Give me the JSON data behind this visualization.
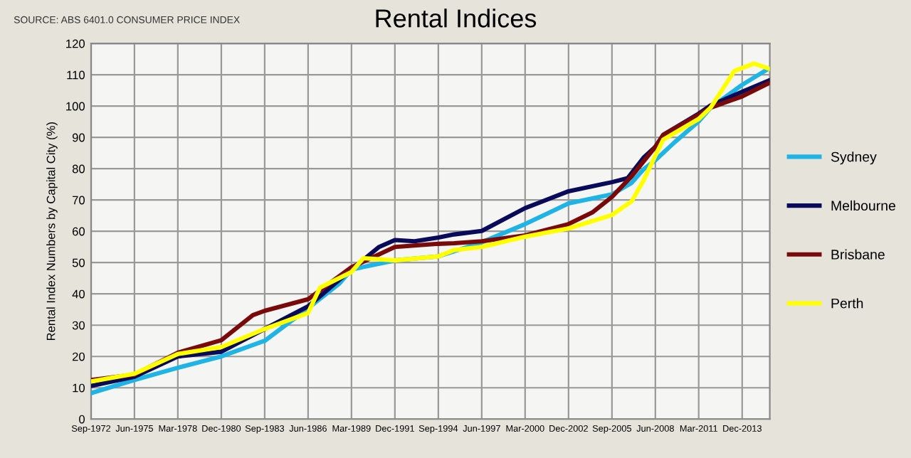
{
  "chart_data": {
    "type": "line",
    "title": "Rental Indices",
    "ylabel": "Rental Index Numbers by Capital City (%)",
    "annotations": [
      "SOURCE: ABS 6401.0 CONSUMER PRICE INDEX"
    ],
    "xlim": [
      "1972-09",
      "2015-09"
    ],
    "ylim": [
      0,
      120
    ],
    "yticks": [
      0,
      10,
      20,
      30,
      40,
      50,
      60,
      70,
      80,
      90,
      100,
      110,
      120
    ],
    "xticks": [
      {
        "value": "1972-09",
        "label": "Sep-1972"
      },
      {
        "value": "1975-06",
        "label": "Jun-1975"
      },
      {
        "value": "1978-03",
        "label": "Mar-1978"
      },
      {
        "value": "1980-12",
        "label": "Dec-1980"
      },
      {
        "value": "1983-09",
        "label": "Sep-1983"
      },
      {
        "value": "1986-06",
        "label": "Jun-1986"
      },
      {
        "value": "1989-03",
        "label": "Mar-1989"
      },
      {
        "value": "1991-12",
        "label": "Dec-1991"
      },
      {
        "value": "1994-09",
        "label": "Sep-1994"
      },
      {
        "value": "1997-06",
        "label": "Jun-1997"
      },
      {
        "value": "2000-03",
        "label": "Mar-2000"
      },
      {
        "value": "2002-12",
        "label": "Dec-2002"
      },
      {
        "value": "2005-09",
        "label": "Sep-2005"
      },
      {
        "value": "2008-06",
        "label": "Jun-2008"
      },
      {
        "value": "2011-03",
        "label": "Mar-2011"
      },
      {
        "value": "2013-12",
        "label": "Dec-2013"
      }
    ],
    "grid": true,
    "legend": "right",
    "marker": "none",
    "line_style": "solid",
    "series": [
      {
        "name": "Sydney",
        "color": "#1fb4e6",
        "x": [
          "1972-09",
          "1975-06",
          "1978-03",
          "1980-12",
          "1983-09",
          "1986-06",
          "1988-06",
          "1989-03",
          "1991-12",
          "1994-09",
          "1995-09",
          "1997-06",
          "2000-03",
          "2002-12",
          "2005-09",
          "2006-12",
          "2007-09",
          "2008-06",
          "2009-09",
          "2011-03",
          "2011-12",
          "2013-12",
          "2015-09"
        ],
        "values": [
          8.3,
          12.5,
          16.4,
          20,
          25,
          35.4,
          43.4,
          47.8,
          50.7,
          52,
          53.6,
          56.5,
          62.3,
          68.9,
          71.8,
          75.5,
          79.8,
          82.7,
          88.6,
          95.1,
          99.5,
          106.8,
          112.2
        ]
      },
      {
        "name": "Melbourne",
        "color": "#0a0a5a",
        "x": [
          "1972-09",
          "1975-06",
          "1978-03",
          "1980-12",
          "1983-09",
          "1986-06",
          "1989-03",
          "1990-12",
          "1991-12",
          "1993-03",
          "1994-09",
          "1995-09",
          "1997-06",
          "2000-03",
          "2002-12",
          "2005-09",
          "2006-09",
          "2007-09",
          "2008-06",
          "2008-12",
          "2011-03",
          "2011-12",
          "2013-12",
          "2015-09"
        ],
        "values": [
          10.6,
          13.5,
          20,
          21.5,
          28.8,
          36,
          47.8,
          55,
          57.2,
          56.8,
          58,
          59,
          60.1,
          67.4,
          72.8,
          75.7,
          77,
          83.5,
          87,
          90.8,
          97.6,
          100.2,
          104.6,
          108.3
        ]
      },
      {
        "name": "Brisbane",
        "color": "#7a0a0a",
        "x": [
          "1972-09",
          "1975-06",
          "1978-03",
          "1980-12",
          "1982-12",
          "1983-09",
          "1986-06",
          "1989-03",
          "1991-12",
          "1994-09",
          "1995-09",
          "1997-06",
          "2000-03",
          "2002-12",
          "2004-06",
          "2005-09",
          "2006-12",
          "2008-06",
          "2008-12",
          "2011-03",
          "2011-12",
          "2013-12",
          "2015-09"
        ],
        "values": [
          12.5,
          14.2,
          21.2,
          25.2,
          33.2,
          34.6,
          38.3,
          48.5,
          55,
          56,
          56.2,
          56.8,
          58.7,
          62.3,
          66,
          71,
          77.6,
          87,
          90.8,
          97.3,
          99.5,
          103.1,
          107.5
        ]
      },
      {
        "name": "Perth",
        "color": "#ffff00",
        "x": [
          "1972-09",
          "1975-06",
          "1978-03",
          "1980-12",
          "1983-09",
          "1986-06",
          "1987-03",
          "1989-03",
          "1989-12",
          "1991-12",
          "1994-09",
          "1995-09",
          "1997-06",
          "2000-03",
          "2002-12",
          "2005-09",
          "2006-12",
          "2007-09",
          "2008-06",
          "2008-12",
          "2011-03",
          "2011-12",
          "2013-06",
          "2014-09",
          "2015-09"
        ],
        "values": [
          12,
          14.5,
          20.8,
          23,
          28.8,
          33.9,
          42,
          47,
          51.4,
          50.7,
          52,
          54,
          55,
          58.3,
          60.9,
          65.2,
          69.6,
          76.2,
          84.2,
          89.3,
          95.9,
          99.5,
          111.2,
          113.6,
          111.9
        ]
      }
    ]
  }
}
